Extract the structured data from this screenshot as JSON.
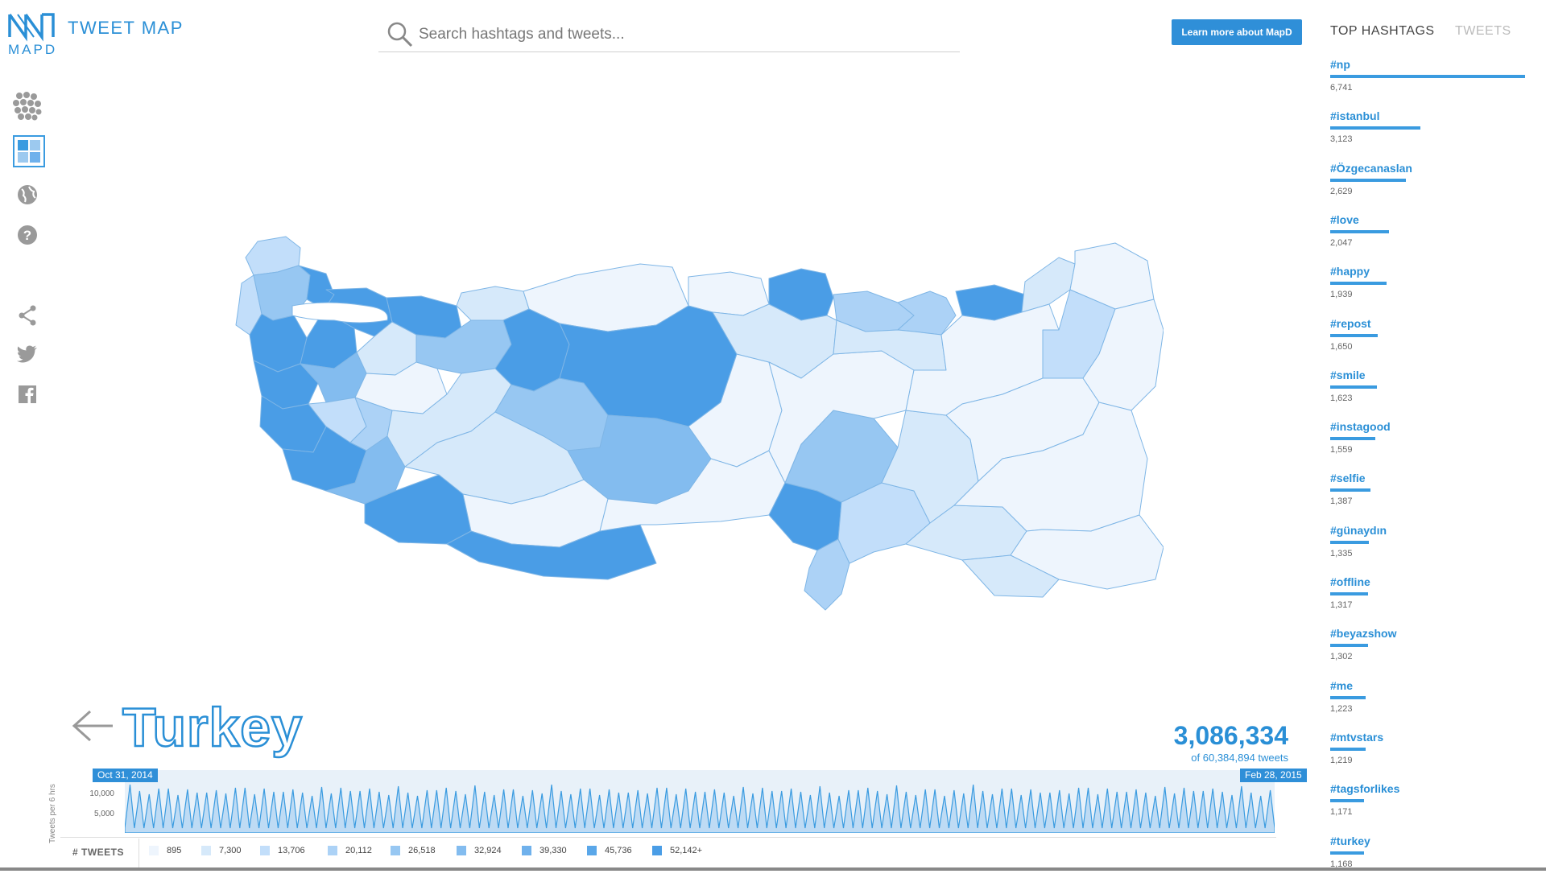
{
  "header": {
    "logo_text": "MAPD",
    "app_title": "TWEET MAP",
    "search_placeholder": "Search hashtags and tweets...",
    "learn_more_label": "Learn more about MapD"
  },
  "toolbar": {
    "icons": [
      "points-view-icon",
      "choropleth-view-icon",
      "globe-icon",
      "help-icon",
      "share-icon",
      "twitter-icon",
      "facebook-icon"
    ]
  },
  "region": {
    "name": "Turkey",
    "tweet_count": "3,086,334",
    "tweet_total_text": "of 60,384,894 tweets"
  },
  "timeline": {
    "start_date": "Oct 31, 2014",
    "end_date": "Feb 28, 2015",
    "y_axis_title": "Tweets per 6 hrs",
    "y_ticks": [
      "10,000",
      "5,000"
    ]
  },
  "legend": {
    "label": "# TWEETS",
    "items": [
      {
        "value": "895",
        "color": "#eef5fd"
      },
      {
        "value": "7,300",
        "color": "#d6e9fa"
      },
      {
        "value": "13,706",
        "color": "#c2defa"
      },
      {
        "value": "20,112",
        "color": "#acd2f6"
      },
      {
        "value": "26,518",
        "color": "#97c7f2"
      },
      {
        "value": "32,924",
        "color": "#83bcef"
      },
      {
        "value": "39,330",
        "color": "#6fb1ec"
      },
      {
        "value": "45,736",
        "color": "#5aa7e9"
      },
      {
        "value": "52,142+",
        "color": "#4a9de6"
      }
    ]
  },
  "right_panel": {
    "tab_top": "TOP HASHTAGS",
    "tab_tweets": "TWEETS",
    "hashtags": [
      {
        "tag": "#np",
        "count": "6,741",
        "value": 6741
      },
      {
        "tag": "#istanbul",
        "count": "3,123",
        "value": 3123
      },
      {
        "tag": "#Özgecanaslan",
        "count": "2,629",
        "value": 2629
      },
      {
        "tag": "#love",
        "count": "2,047",
        "value": 2047
      },
      {
        "tag": "#happy",
        "count": "1,939",
        "value": 1939
      },
      {
        "tag": "#repost",
        "count": "1,650",
        "value": 1650
      },
      {
        "tag": "#smile",
        "count": "1,623",
        "value": 1623
      },
      {
        "tag": "#instagood",
        "count": "1,559",
        "value": 1559
      },
      {
        "tag": "#selfie",
        "count": "1,387",
        "value": 1387
      },
      {
        "tag": "#günaydın",
        "count": "1,335",
        "value": 1335
      },
      {
        "tag": "#offline",
        "count": "1,317",
        "value": 1317
      },
      {
        "tag": "#beyazshow",
        "count": "1,302",
        "value": 1302
      },
      {
        "tag": "#me",
        "count": "1,223",
        "value": 1223
      },
      {
        "tag": "#mtvstars",
        "count": "1,219",
        "value": 1219
      },
      {
        "tag": "#tagsforlikes",
        "count": "1,171",
        "value": 1171
      },
      {
        "tag": "#turkey",
        "count": "1,168",
        "value": 1168
      }
    ]
  }
}
